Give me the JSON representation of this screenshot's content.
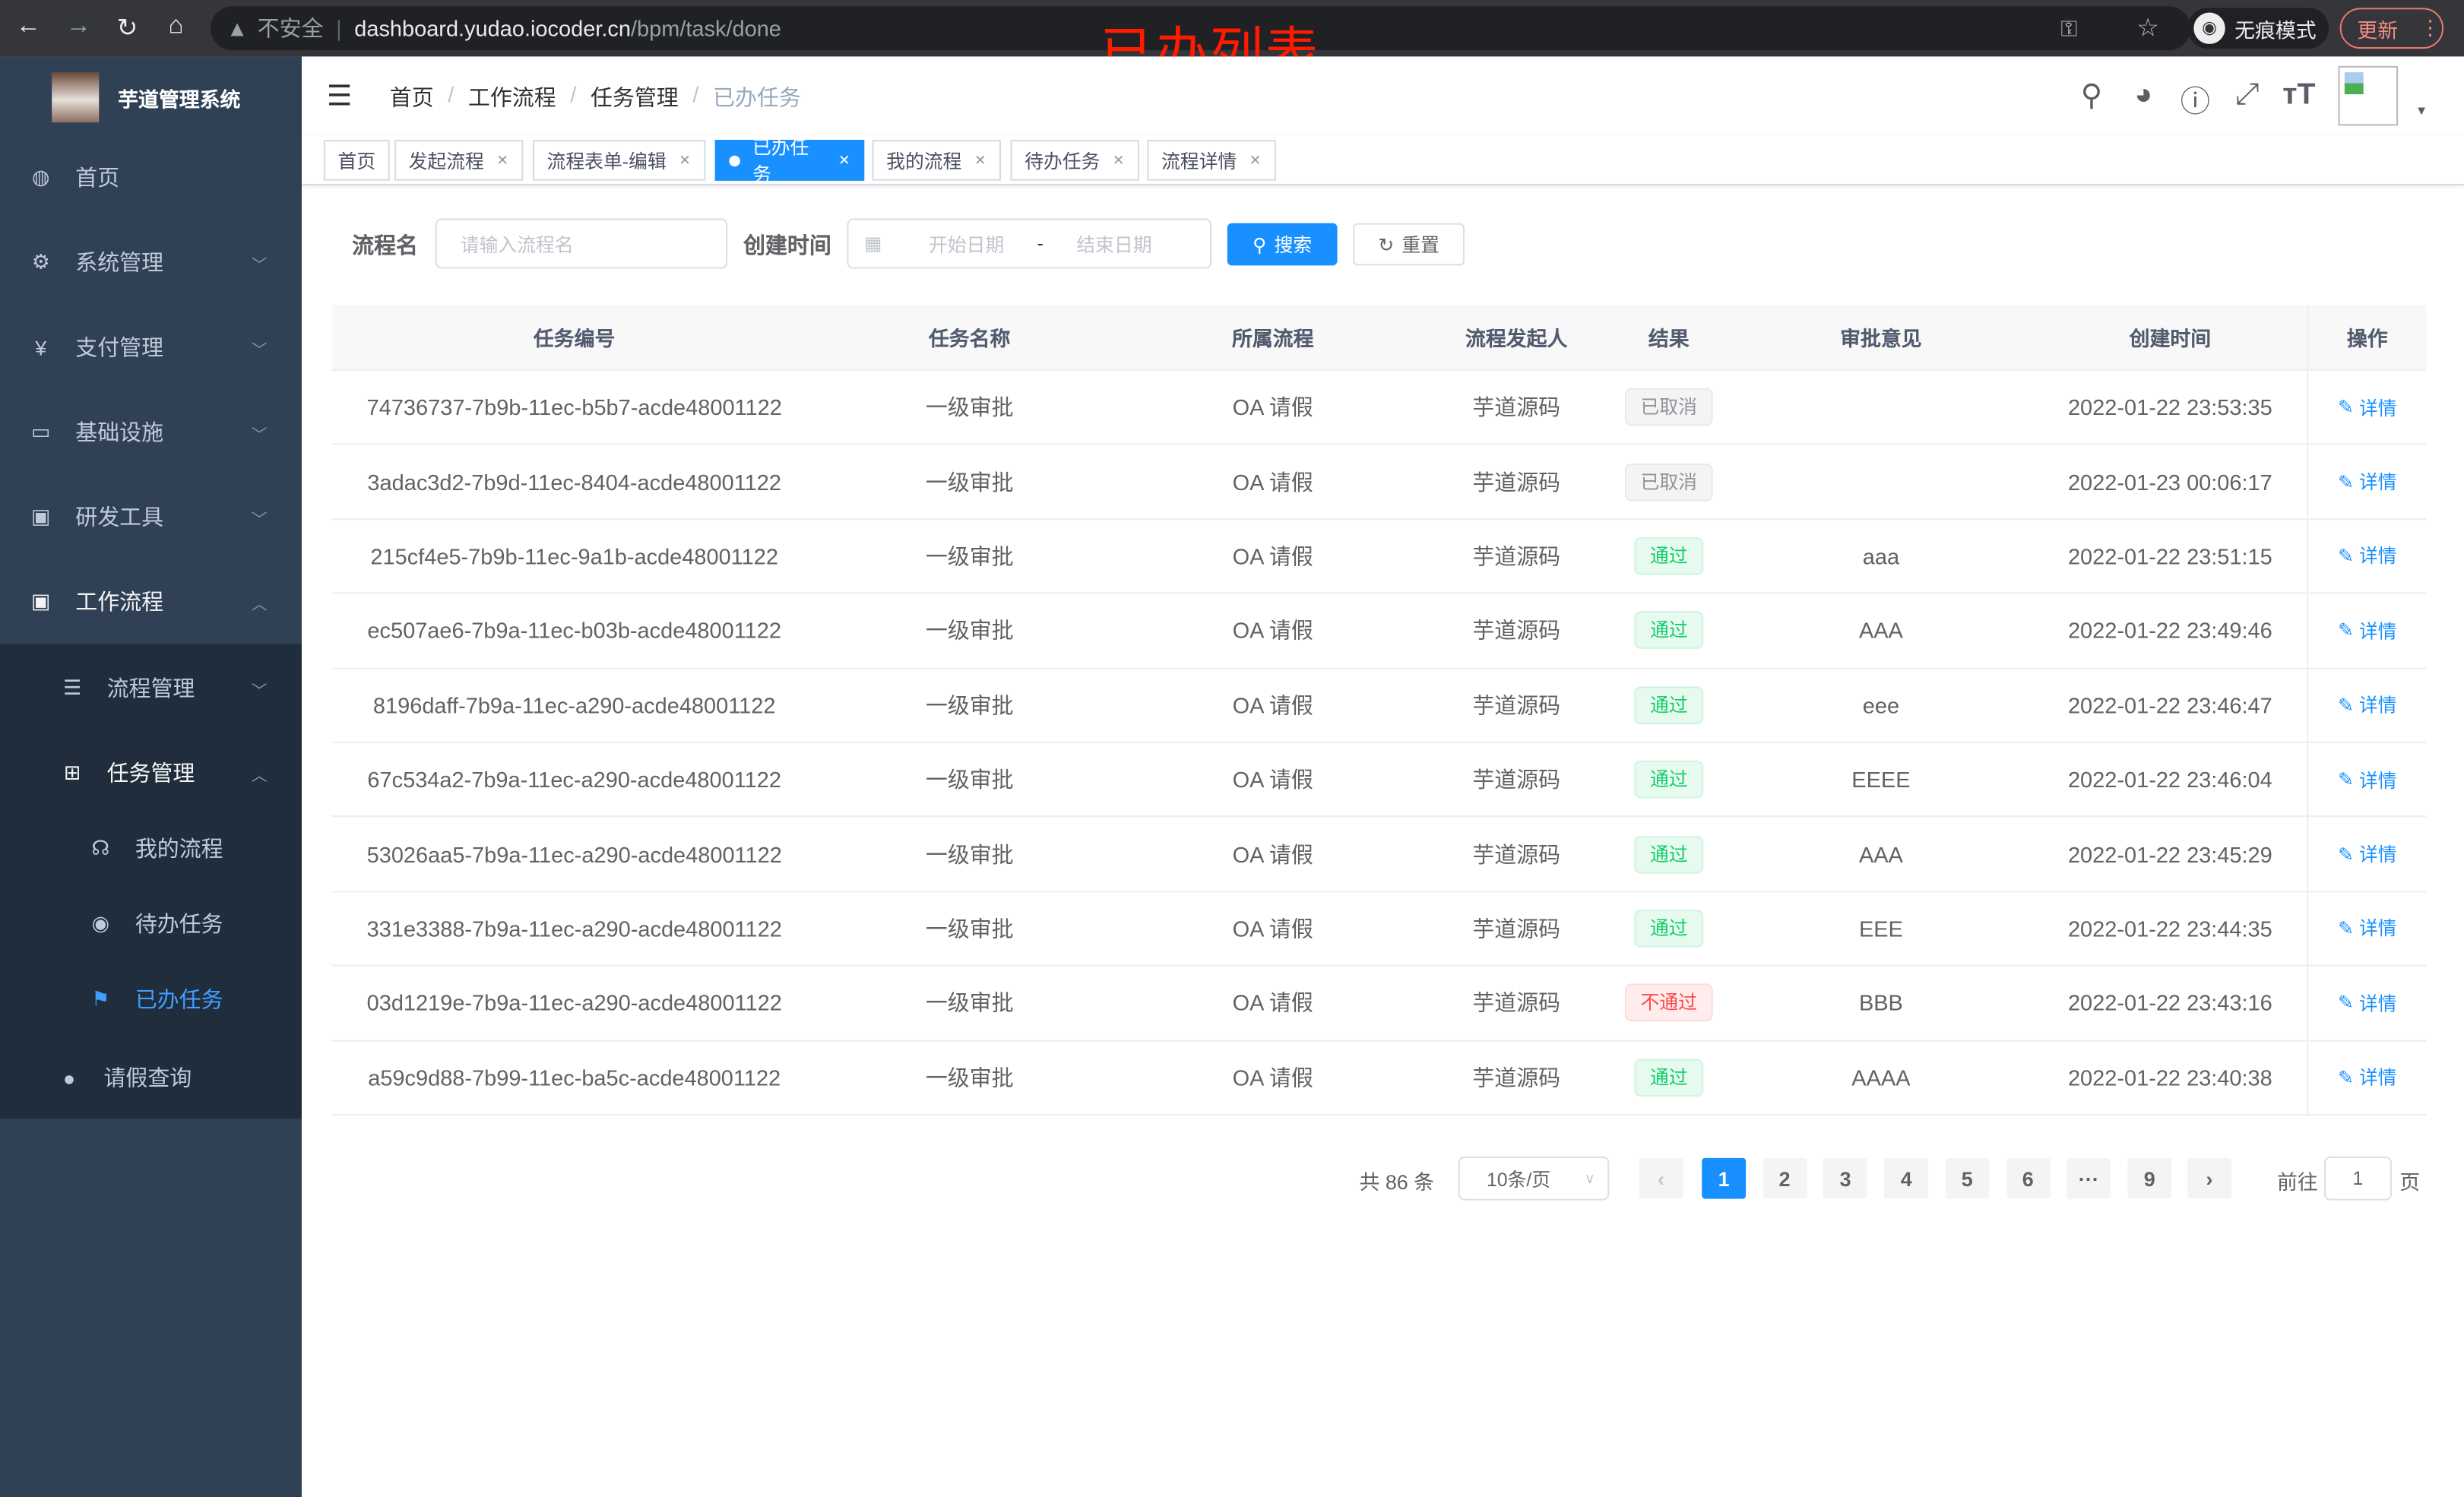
{
  "browser": {
    "security": "不安全",
    "url_host": "dashboard.yudao.iocoder.cn",
    "url_path": "/bpm/task/done",
    "incognito": "无痕模式",
    "update": "更新"
  },
  "annotation": "已办列表",
  "sidebar": {
    "title": "芋道管理系统",
    "items": [
      {
        "label": "首页",
        "icon": "dashboard-icon"
      },
      {
        "label": "系统管理",
        "icon": "gear-icon"
      },
      {
        "label": "支付管理",
        "icon": "yen-icon"
      },
      {
        "label": "基础设施",
        "icon": "monitor-icon"
      },
      {
        "label": "研发工具",
        "icon": "toolbox-icon"
      },
      {
        "label": "工作流程",
        "icon": "toolbox-icon"
      }
    ],
    "sub_items": [
      {
        "label": "流程管理",
        "icon": "list-icon"
      },
      {
        "label": "任务管理",
        "icon": "tree-icon"
      },
      {
        "label": "我的流程",
        "icon": "headset-icon"
      },
      {
        "label": "待办任务",
        "icon": "eye-icon"
      },
      {
        "label": "已办任务",
        "icon": "finish-icon"
      },
      {
        "label": "请假查询",
        "icon": "user-icon"
      }
    ],
    "active": "已办任务",
    "accent": "#409eff"
  },
  "breadcrumb": [
    "首页",
    "工作流程",
    "任务管理",
    "已办任务"
  ],
  "tags": [
    {
      "label": "首页"
    },
    {
      "label": "发起流程"
    },
    {
      "label": "流程表单-编辑"
    },
    {
      "label": "已办任务",
      "active": true
    },
    {
      "label": "我的流程"
    },
    {
      "label": "待办任务"
    },
    {
      "label": "流程详情"
    }
  ],
  "filter": {
    "name_label": "流程名",
    "name_placeholder": "请输入流程名",
    "time_label": "创建时间",
    "start_placeholder": "开始日期",
    "range_sep": "-",
    "end_placeholder": "结束日期",
    "search": "搜索",
    "reset": "重置"
  },
  "table": {
    "columns": [
      "任务编号",
      "任务名称",
      "所属流程",
      "流程发起人",
      "结果",
      "审批意见",
      "创建时间",
      "操作"
    ],
    "action_label": "详情",
    "rows": [
      {
        "id": "74736737-7b9b-11ec-b5b7-acde48001122",
        "name": "一级审批",
        "process": "OA 请假",
        "starter": "芋道源码",
        "result": "已取消",
        "status": "cancel",
        "comment": "",
        "time": "2022-01-22 23:53:35"
      },
      {
        "id": "3adac3d2-7b9d-11ec-8404-acde48001122",
        "name": "一级审批",
        "process": "OA 请假",
        "starter": "芋道源码",
        "result": "已取消",
        "status": "cancel",
        "comment": "",
        "time": "2022-01-23 00:06:17"
      },
      {
        "id": "215cf4e5-7b9b-11ec-9a1b-acde48001122",
        "name": "一级审批",
        "process": "OA 请假",
        "starter": "芋道源码",
        "result": "通过",
        "status": "pass",
        "comment": "aaa",
        "time": "2022-01-22 23:51:15"
      },
      {
        "id": "ec507ae6-7b9a-11ec-b03b-acde48001122",
        "name": "一级审批",
        "process": "OA 请假",
        "starter": "芋道源码",
        "result": "通过",
        "status": "pass",
        "comment": "AAA",
        "time": "2022-01-22 23:49:46"
      },
      {
        "id": "8196daff-7b9a-11ec-a290-acde48001122",
        "name": "一级审批",
        "process": "OA 请假",
        "starter": "芋道源码",
        "result": "通过",
        "status": "pass",
        "comment": "eee",
        "time": "2022-01-22 23:46:47"
      },
      {
        "id": "67c534a2-7b9a-11ec-a290-acde48001122",
        "name": "一级审批",
        "process": "OA 请假",
        "starter": "芋道源码",
        "result": "通过",
        "status": "pass",
        "comment": "EEEE",
        "time": "2022-01-22 23:46:04"
      },
      {
        "id": "53026aa5-7b9a-11ec-a290-acde48001122",
        "name": "一级审批",
        "process": "OA 请假",
        "starter": "芋道源码",
        "result": "通过",
        "status": "pass",
        "comment": "AAA",
        "time": "2022-01-22 23:45:29"
      },
      {
        "id": "331e3388-7b9a-11ec-a290-acde48001122",
        "name": "一级审批",
        "process": "OA 请假",
        "starter": "芋道源码",
        "result": "通过",
        "status": "pass",
        "comment": "EEE",
        "time": "2022-01-22 23:44:35"
      },
      {
        "id": "03d1219e-7b9a-11ec-a290-acde48001122",
        "name": "一级审批",
        "process": "OA 请假",
        "starter": "芋道源码",
        "result": "不通过",
        "status": "reject",
        "comment": "BBB",
        "time": "2022-01-22 23:43:16"
      },
      {
        "id": "a59c9d88-7b99-11ec-ba5c-acde48001122",
        "name": "一级审批",
        "process": "OA 请假",
        "starter": "芋道源码",
        "result": "通过",
        "status": "pass",
        "comment": "AAAA",
        "time": "2022-01-22 23:40:38"
      }
    ]
  },
  "status_colors": {
    "cancel": "#909399",
    "pass": "#13ce66",
    "reject": "#ff4949"
  },
  "pagination": {
    "total": "共 86 条",
    "page_size": "10条/页",
    "pages": [
      "1",
      "2",
      "3",
      "4",
      "5",
      "6",
      "···",
      "9"
    ],
    "current": "1",
    "goto_label": "前往",
    "goto_value": "1",
    "page_unit": "页"
  }
}
